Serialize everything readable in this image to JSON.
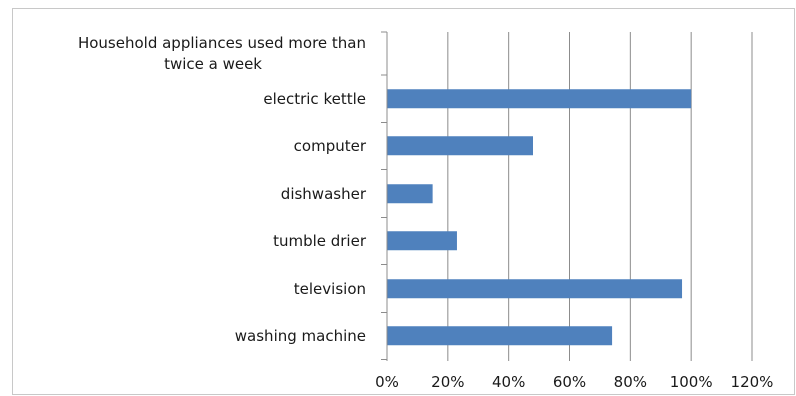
{
  "chart_data": {
    "type": "bar",
    "orientation": "horizontal",
    "title_lines": [
      "Household appliances used more than",
      "twice a week"
    ],
    "categories": [
      "electric kettle",
      "computer",
      "dishwasher",
      "tumble drier",
      "television",
      "washing machine"
    ],
    "values": [
      100,
      48,
      15,
      23,
      97,
      74
    ],
    "value_unit": "%",
    "xlim": [
      0,
      120
    ],
    "x_ticks": [
      "0%",
      "20%",
      "40%",
      "60%",
      "80%",
      "100%",
      "120%"
    ],
    "grid": "vertical",
    "legend": "none",
    "bar_color": "#4f81bd"
  }
}
